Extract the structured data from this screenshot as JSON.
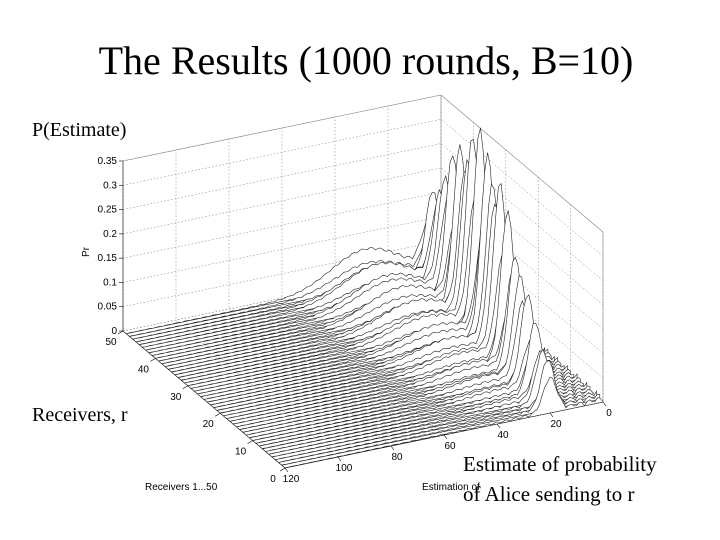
{
  "chart_data": {
    "type": "surface",
    "title": "The Results (1000 rounds, B=10)",
    "annotations": {
      "z": "P(Estimate)",
      "y": "Receivers, r",
      "x": [
        "Estimate of probability",
        "of Alice sending to r"
      ]
    },
    "zlabel": "Pr",
    "ylabel": "Receivers 1...50",
    "xlabel": "Estimation of",
    "zlim": [
      0,
      0.35
    ],
    "zticks": [
      0,
      0.05,
      0.1,
      0.15,
      0.2,
      0.25,
      0.3,
      0.35
    ],
    "ylim": [
      0,
      50
    ],
    "yticks": [
      0,
      10,
      20,
      30,
      40,
      50
    ],
    "xlim": [
      0,
      120
    ],
    "xticks": [
      0,
      20,
      40,
      60,
      80,
      100,
      120
    ],
    "grid": true
  }
}
